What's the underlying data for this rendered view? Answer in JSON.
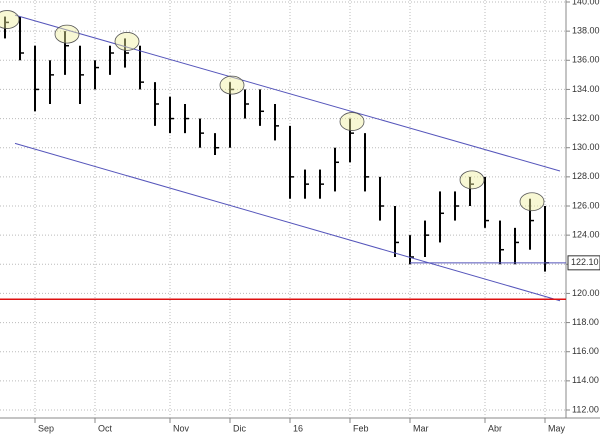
{
  "chart_data": {
    "type": "ohlc",
    "categories": [
      null,
      null,
      "Sep",
      null,
      null,
      null,
      "Oct",
      null,
      null,
      null,
      null,
      "Nov",
      null,
      null,
      null,
      "Dic",
      null,
      null,
      null,
      "16",
      null,
      null,
      null,
      "Feb",
      null,
      null,
      null,
      "Mar",
      null,
      null,
      null,
      null,
      "Abr",
      null,
      null,
      null,
      "May"
    ],
    "high": [
      139,
      139,
      137,
      136,
      138,
      137,
      136,
      137,
      137.5,
      137,
      134.5,
      133.5,
      133,
      132,
      131,
      134.5,
      134,
      134,
      133,
      131.5,
      128.5,
      128.5,
      130,
      132,
      131,
      128,
      126,
      124,
      125,
      127,
      127,
      128,
      128,
      125,
      124.5,
      126.5,
      126
    ],
    "low": [
      137.5,
      136,
      132.5,
      133,
      135,
      133,
      134,
      135,
      135.5,
      134,
      131.5,
      131,
      131,
      130,
      129.5,
      130,
      132,
      131.5,
      130.5,
      126.5,
      126.5,
      126.5,
      127,
      129,
      127,
      125,
      122.5,
      122,
      122.5,
      123.5,
      125,
      126,
      124.5,
      122,
      122,
      123,
      121.5
    ],
    "close": [
      138.6,
      136.5,
      134,
      135,
      137,
      135,
      135.5,
      136.5,
      136.5,
      134.5,
      133,
      132,
      132,
      131,
      130,
      134,
      133,
      132.5,
      131.5,
      128,
      127.5,
      127.5,
      129,
      131,
      128,
      126,
      123.5,
      122.5,
      124,
      125.5,
      126,
      127.5,
      125,
      123,
      123.5,
      125,
      122.1
    ],
    "color": "#000000",
    "ylim": [
      112,
      140
    ],
    "yticks": [
      {
        "value": 112,
        "label": "112.00"
      },
      {
        "value": 114,
        "label": "114.00"
      },
      {
        "value": 116,
        "label": "116.00"
      },
      {
        "value": 118,
        "label": "118.00"
      },
      {
        "value": 120,
        "label": "120.00"
      },
      {
        "value": 122,
        "label": "122.00"
      },
      {
        "value": 124,
        "label": "124.00"
      },
      {
        "value": 126,
        "label": "126.00"
      },
      {
        "value": 128,
        "label": "128.00"
      },
      {
        "value": 130,
        "label": "130.00"
      },
      {
        "value": 132,
        "label": "132.00"
      },
      {
        "value": 134,
        "label": "134.00"
      },
      {
        "value": 136,
        "label": "136.00"
      },
      {
        "value": 138,
        "label": "138.00"
      },
      {
        "value": 140,
        "label": "140.00"
      }
    ],
    "grid": true,
    "channel": [
      {
        "start": 139.1,
        "end": 128.4,
        "color": "#5555bb"
      },
      {
        "start": 130.3,
        "end": 119.5,
        "color": "#5555bb"
      }
    ],
    "support": {
      "value": 122.1,
      "start_index": 27,
      "color": "#5555bb"
    },
    "resistance": {
      "value": 119.6,
      "color": "#dd1111"
    },
    "highlighted": [
      0,
      4,
      8,
      15,
      23,
      31,
      35
    ],
    "last_label": {
      "value": 122.1,
      "label": "122.10"
    }
  }
}
